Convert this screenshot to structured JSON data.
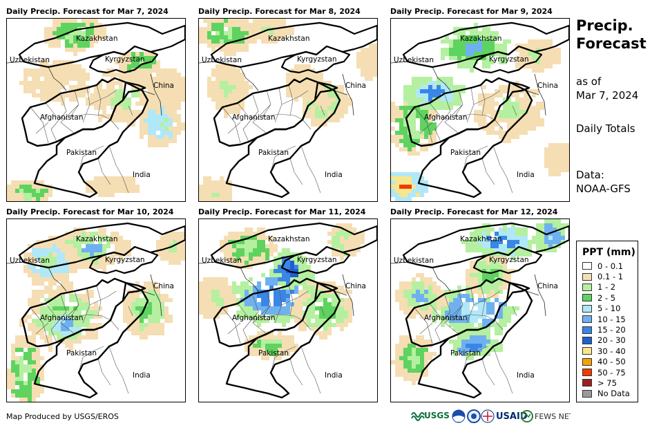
{
  "panels": [
    {
      "title": "Daily Precip. Forecast for Mar 7, 2024"
    },
    {
      "title": "Daily Precip. Forecast for Mar 8, 2024"
    },
    {
      "title": "Daily Precip. Forecast for Mar 9, 2024"
    },
    {
      "title": "Daily Precip. Forecast for Mar 10, 2024"
    },
    {
      "title": "Daily Precip. Forecast for Mar 11, 2024"
    },
    {
      "title": "Daily Precip. Forecast for Mar 12, 2024"
    }
  ],
  "map_labels": {
    "kazakhstan": "Kazakhstan",
    "uzbekistan": "Uzbekistan",
    "kyrgyzstan": "Kyrgyzstan",
    "china": "China",
    "afghanistan": "Afghanistan",
    "pakistan": "Pakistan",
    "india": "India"
  },
  "sidebar": {
    "title_line1": "Precip.",
    "title_line2": "Forecast",
    "asof_line1": "as of",
    "asof_line2": "Mar 7, 2024",
    "totals": "Daily Totals",
    "data_line1": "Data:",
    "data_line2": "NOAA-GFS"
  },
  "legend": {
    "title": "PPT (mm)",
    "items": [
      {
        "label": "0 - 0.1",
        "color": "#ffffff"
      },
      {
        "label": "0.1 - 1",
        "color": "#f5deb3"
      },
      {
        "label": "1 - 2",
        "color": "#b4f0a0"
      },
      {
        "label": "2 - 5",
        "color": "#5fd35f"
      },
      {
        "label": "5 - 10",
        "color": "#b0e8f8"
      },
      {
        "label": "10 - 15",
        "color": "#6fb1f0"
      },
      {
        "label": "15 - 20",
        "color": "#3a86e6"
      },
      {
        "label": "20 - 30",
        "color": "#1f5fd0"
      },
      {
        "label": "30 - 40",
        "color": "#f8e68c"
      },
      {
        "label": "40 - 50",
        "color": "#f5a000"
      },
      {
        "label": "50 - 75",
        "color": "#f03c00"
      },
      {
        "label": "> 75",
        "color": "#a01e1e"
      },
      {
        "label": "No Data",
        "color": "#9a9a9a"
      }
    ]
  },
  "credit": "Map Produced by USGS/EROS",
  "logos": {
    "usgs": "USGS",
    "usaid": "USAID",
    "fewsnet": "FEWS NET"
  }
}
